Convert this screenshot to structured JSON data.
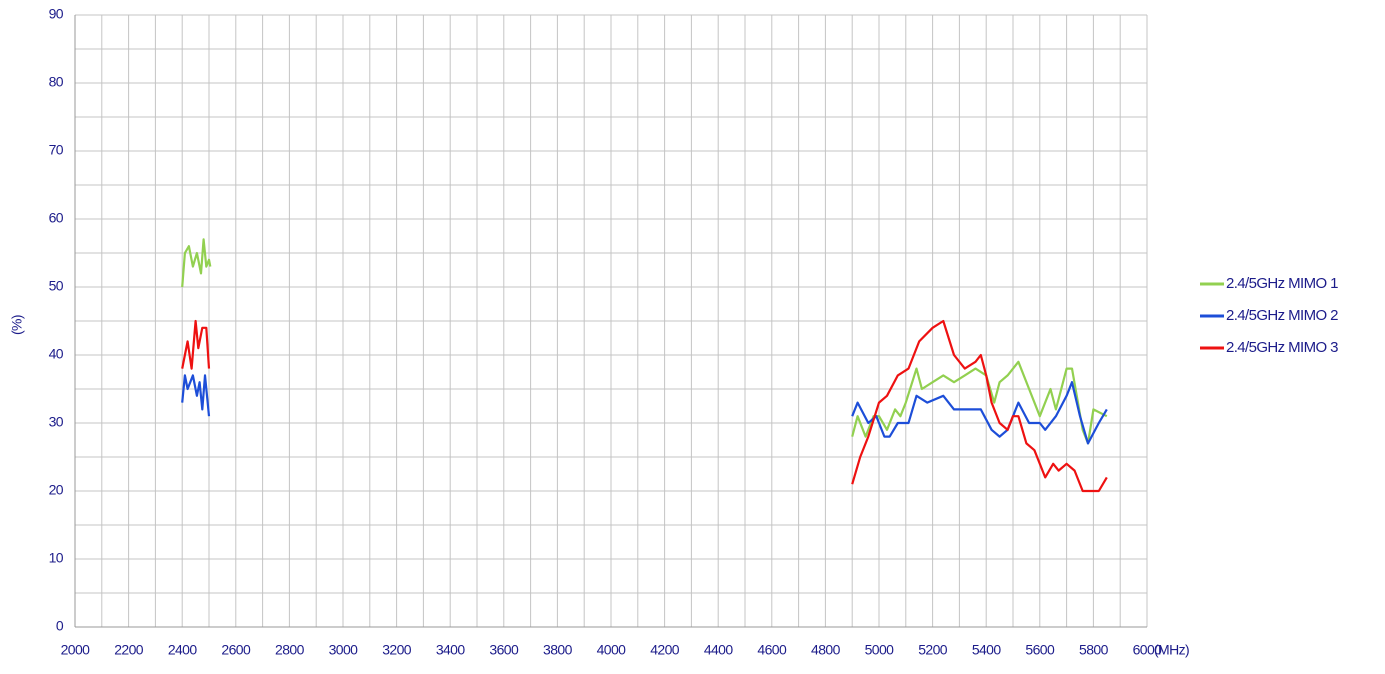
{
  "chart_data": {
    "type": "line",
    "xlabel": "(MHz)",
    "ylabel": "(%)",
    "xlim": [
      2000,
      6000
    ],
    "xticks": [
      2000,
      2200,
      2400,
      2600,
      2800,
      3000,
      3200,
      3400,
      3600,
      3800,
      4000,
      4200,
      4400,
      4600,
      4800,
      5000,
      5200,
      5400,
      5600,
      5800,
      6000
    ],
    "ylim": [
      0,
      90
    ],
    "yticks": [
      0,
      10,
      20,
      30,
      40,
      50,
      60,
      70,
      80,
      90
    ],
    "grid": true,
    "legend": "right",
    "series": [
      {
        "name": "2.4/5GHz MIMO 1",
        "color": "#92d050",
        "x": [
          2400,
          2410,
          2425,
          2440,
          2455,
          2470,
          2480,
          2490,
          2500,
          2505,
          null,
          4900,
          4920,
          4950,
          4980,
          5000,
          5030,
          5060,
          5080,
          5100,
          5140,
          5160,
          5200,
          5240,
          5280,
          5320,
          5360,
          5400,
          5430,
          5450,
          5480,
          5520,
          5560,
          5600,
          5640,
          5660,
          5700,
          5720,
          5760,
          5780,
          5800,
          5850
        ],
        "values": [
          50,
          55,
          56,
          53,
          55,
          52,
          57,
          53,
          54,
          53,
          null,
          28,
          31,
          28,
          31,
          31,
          29,
          32,
          31,
          33,
          38,
          35,
          36,
          37,
          36,
          37,
          38,
          37,
          33,
          36,
          37,
          39,
          35,
          31,
          35,
          32,
          38,
          38,
          29,
          27,
          32,
          31
        ]
      },
      {
        "name": "2.4/5GHz MIMO 2",
        "color": "#1d4ed8",
        "x": [
          2400,
          2410,
          2420,
          2440,
          2455,
          2465,
          2475,
          2485,
          2500,
          null,
          4900,
          4920,
          4960,
          4990,
          5020,
          5040,
          5070,
          5110,
          5140,
          5180,
          5240,
          5280,
          5320,
          5380,
          5420,
          5450,
          5480,
          5520,
          5560,
          5600,
          5620,
          5660,
          5700,
          5720,
          5750,
          5780,
          5820,
          5850
        ],
        "values": [
          33,
          37,
          35,
          37,
          34,
          36,
          32,
          37,
          31,
          null,
          31,
          33,
          30,
          31,
          28,
          28,
          30,
          30,
          34,
          33,
          34,
          32,
          32,
          32,
          29,
          28,
          29,
          33,
          30,
          30,
          29,
          31,
          34,
          36,
          31,
          27,
          30,
          32
        ]
      },
      {
        "name": "2.4/5GHz MIMO 3",
        "color": "#ee1111",
        "x": [
          2400,
          2420,
          2435,
          2450,
          2460,
          2475,
          2490,
          2500,
          null,
          4900,
          4930,
          4960,
          5000,
          5030,
          5070,
          5110,
          5150,
          5200,
          5240,
          5280,
          5320,
          5360,
          5380,
          5400,
          5420,
          5450,
          5480,
          5500,
          5520,
          5550,
          5580,
          5620,
          5650,
          5670,
          5700,
          5730,
          5760,
          5790,
          5820,
          5850
        ],
        "values": [
          38,
          42,
          38,
          45,
          41,
          44,
          44,
          38,
          null,
          21,
          25,
          28,
          33,
          34,
          37,
          38,
          42,
          44,
          45,
          40,
          38,
          39,
          40,
          37,
          33,
          30,
          29,
          31,
          31,
          27,
          26,
          22,
          24,
          23,
          24,
          23,
          20,
          20,
          20,
          22
        ]
      }
    ]
  }
}
